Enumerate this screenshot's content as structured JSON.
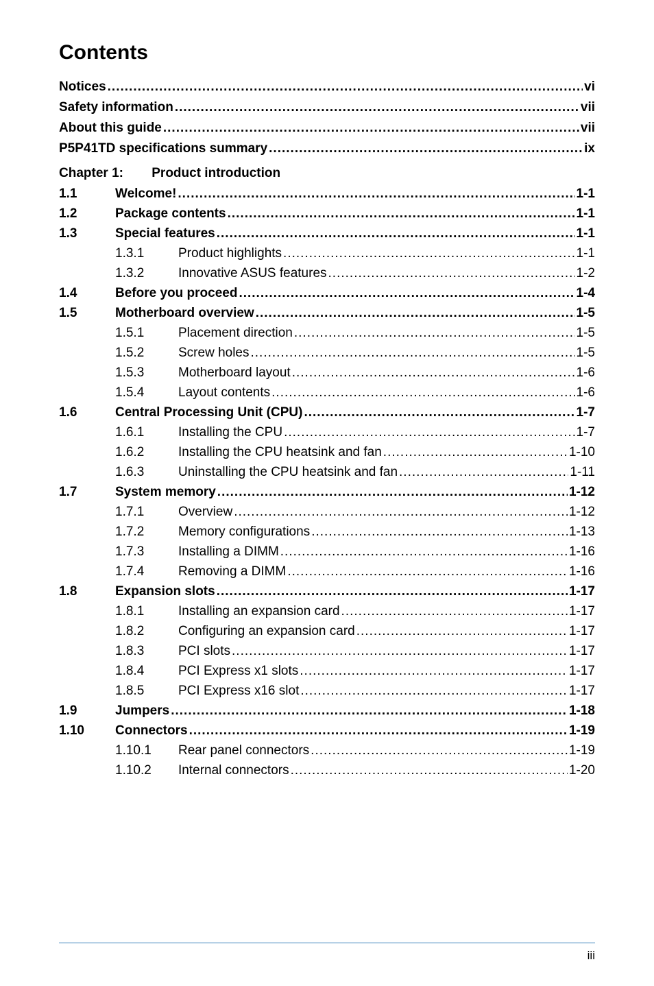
{
  "title": "Contents",
  "top_entries": [
    {
      "label": "Notices",
      "page": "vi"
    },
    {
      "label": "Safety information",
      "page": "vii"
    },
    {
      "label": "About this guide",
      "page": "vii"
    },
    {
      "label": "P5P41TD specifications summary",
      "page": "ix"
    }
  ],
  "chapter": {
    "label": "Chapter 1:",
    "title": "Product introduction"
  },
  "sections": [
    {
      "num": "1.1",
      "label": "Welcome!",
      "page": "1-1",
      "subs": []
    },
    {
      "num": "1.2",
      "label": "Package contents",
      "page": "1-1",
      "subs": []
    },
    {
      "num": "1.3",
      "label": "Special features",
      "page": "1-1",
      "subs": [
        {
          "num": "1.3.1",
          "label": "Product highlights",
          "page": "1-1"
        },
        {
          "num": "1.3.2",
          "label": "Innovative ASUS features",
          "page": "1-2"
        }
      ]
    },
    {
      "num": "1.4",
      "label": "Before you proceed",
      "page": "1-4",
      "subs": []
    },
    {
      "num": "1.5",
      "label": "Motherboard overview",
      "page": "1-5",
      "subs": [
        {
          "num": "1.5.1",
          "label": "Placement direction",
          "page": "1-5"
        },
        {
          "num": "1.5.2",
          "label": "Screw holes",
          "page": "1-5"
        },
        {
          "num": "1.5.3",
          "label": "Motherboard layout",
          "page": "1-6"
        },
        {
          "num": "1.5.4",
          "label": "Layout contents",
          "page": "1-6"
        }
      ]
    },
    {
      "num": "1.6",
      "label": "Central Processing Unit (CPU)",
      "page": "1-7",
      "subs": [
        {
          "num": "1.6.1",
          "label": "Installing the CPU",
          "page": "1-7"
        },
        {
          "num": "1.6.2",
          "label": "Installing the CPU heatsink and fan",
          "page": "1-10"
        },
        {
          "num": "1.6.3",
          "label": "Uninstalling the CPU heatsink and fan",
          "page": "1-11"
        }
      ]
    },
    {
      "num": "1.7",
      "label": "System memory",
      "page": "1-12",
      "subs": [
        {
          "num": "1.7.1",
          "label": "Overview",
          "page": "1-12"
        },
        {
          "num": "1.7.2",
          "label": "Memory configurations",
          "page": "1-13"
        },
        {
          "num": "1.7.3",
          "label": "Installing a DIMM",
          "page": "1-16"
        },
        {
          "num": "1.7.4",
          "label": "Removing a DIMM",
          "page": "1-16"
        }
      ]
    },
    {
      "num": "1.8",
      "label": "Expansion slots",
      "page": "1-17",
      "subs": [
        {
          "num": "1.8.1",
          "label": "Installing an expansion card",
          "page": "1-17"
        },
        {
          "num": "1.8.2",
          "label": "Configuring an expansion card",
          "page": "1-17"
        },
        {
          "num": "1.8.3",
          "label": "PCI slots",
          "page": "1-17"
        },
        {
          "num": "1.8.4",
          "label": "PCI Express x1 slots",
          "page": "1-17"
        },
        {
          "num": "1.8.5",
          "label": "PCI Express x16 slot",
          "page": "1-17"
        }
      ]
    },
    {
      "num": "1.9",
      "label": "Jumpers",
      "page": "1-18",
      "subs": []
    },
    {
      "num": "1.10",
      "label": "Connectors",
      "page": "1-19",
      "subs": [
        {
          "num": "1.10.1",
          "label": "Rear panel connectors",
          "page": "1-19"
        },
        {
          "num": "1.10.2",
          "label": "Internal connectors",
          "page": "1-20"
        }
      ]
    }
  ],
  "footer_page": "iii",
  "colors": {
    "footer_line": "#b7d1e6",
    "text": "#000000",
    "background": "#ffffff"
  }
}
